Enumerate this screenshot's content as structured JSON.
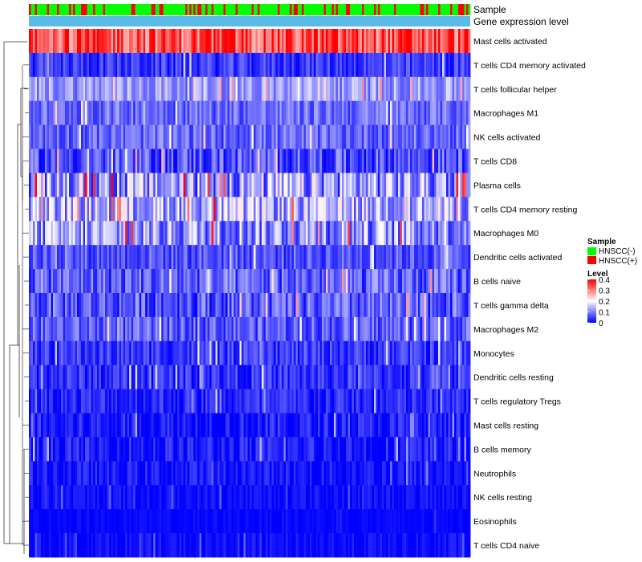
{
  "chart_data": {
    "type": "heatmap",
    "annotation_labels": {
      "sample": "Sample",
      "expression": "Gene expression level"
    },
    "rows": [
      {
        "name": "Mast cells activated",
        "mean": 0.32,
        "spread": 0.08
      },
      {
        "name": "T cells CD4 memory activated",
        "mean": 0.035,
        "spread": 0.04
      },
      {
        "name": "T cells follicular helper",
        "mean": 0.11,
        "spread": 0.05
      },
      {
        "name": "Macrophages M1",
        "mean": 0.075,
        "spread": 0.045
      },
      {
        "name": "NK cells activated",
        "mean": 0.07,
        "spread": 0.045
      },
      {
        "name": "T cells CD8",
        "mean": 0.05,
        "spread": 0.06
      },
      {
        "name": "Plasma cells",
        "mean": 0.1,
        "spread": 0.1
      },
      {
        "name": "T cells CD4 memory resting",
        "mean": 0.12,
        "spread": 0.08
      },
      {
        "name": "Macrophages M0",
        "mean": 0.1,
        "spread": 0.09
      },
      {
        "name": "Dendritic cells activated",
        "mean": 0.055,
        "spread": 0.045
      },
      {
        "name": "B cells naive",
        "mean": 0.06,
        "spread": 0.06
      },
      {
        "name": "T cells gamma delta",
        "mean": 0.055,
        "spread": 0.06
      },
      {
        "name": "Macrophages M2",
        "mean": 0.06,
        "spread": 0.05
      },
      {
        "name": "Monocytes",
        "mean": 0.035,
        "spread": 0.04
      },
      {
        "name": "Dendritic cells resting",
        "mean": 0.03,
        "spread": 0.04
      },
      {
        "name": "T cells regulatory  Tregs",
        "mean": 0.02,
        "spread": 0.04
      },
      {
        "name": "Mast cells resting",
        "mean": 0.01,
        "spread": 0.04
      },
      {
        "name": "B cells memory",
        "mean": 0.01,
        "spread": 0.04
      },
      {
        "name": "Neutrophils",
        "mean": 0.01,
        "spread": 0.03
      },
      {
        "name": "NK cells resting",
        "mean": 0.006,
        "spread": 0.02
      },
      {
        "name": "Eosinophils",
        "mean": 0.003,
        "spread": 0.01
      },
      {
        "name": "T cells CD4 naive",
        "mean": 0.004,
        "spread": 0.02
      }
    ],
    "n_samples": 220,
    "sample_groups": [
      "HNSCC(-)",
      "HNSCC(+)"
    ],
    "fraction_positive": 0.22,
    "level_range": [
      0,
      0.4
    ],
    "level_ticks": [
      "0.4",
      "0.3",
      "0.2",
      "0.1",
      "0"
    ],
    "colors": {
      "low": "#0000ff",
      "mid": "#ffffff",
      "high": "#ff0000",
      "group_negative": "#00ff00",
      "group_positive": "#ff0000",
      "expression_bar": "#5bbbe8",
      "dendrogram": "#333333"
    },
    "legend": {
      "sample_title": "Sample",
      "sample_entries": [
        "HNSCC(-)",
        "HNSCC(+)"
      ],
      "level_title": "Level"
    },
    "dendrogram_side": "left",
    "legend_position": "right"
  }
}
